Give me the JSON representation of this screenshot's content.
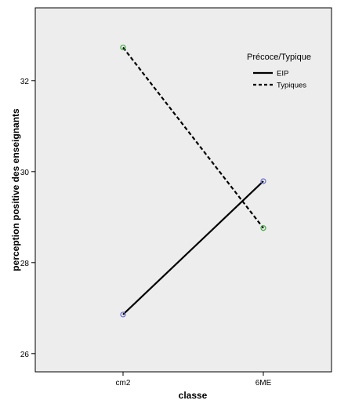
{
  "chart_data": {
    "type": "line",
    "categories": [
      "cm2",
      "6ME"
    ],
    "xlabel": "classe",
    "ylabel": "perception positive des enseignants",
    "ylim": [
      25.6,
      33.6
    ],
    "yticks": [
      26,
      28,
      30,
      32
    ],
    "grid": false,
    "legend": {
      "title": "Précoce/Typique",
      "placement": "top-right"
    },
    "series": [
      {
        "name": "EIP",
        "values": [
          26.86,
          29.79
        ],
        "style": "solid",
        "marker_color": "#6b6fd0"
      },
      {
        "name": "Typiques",
        "values": [
          32.73,
          28.76
        ],
        "style": "dashed",
        "marker_color": "#3faa3f"
      }
    ]
  },
  "colors": {
    "plot_background": "#ededed",
    "frame": "#000000",
    "line": "#000000"
  }
}
